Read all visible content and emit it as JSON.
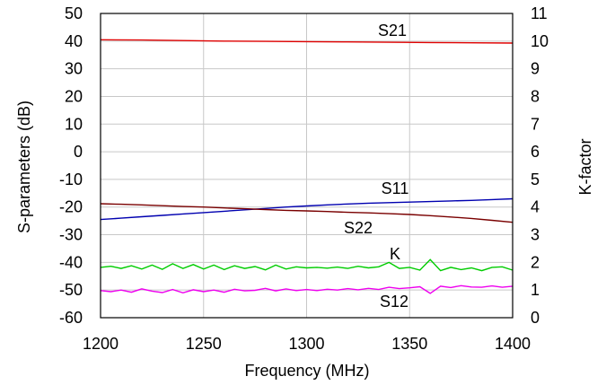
{
  "chart_data": {
    "type": "line",
    "xlabel": "Frequency (MHz)",
    "ylabel": "S-parameters (dB)",
    "y2label": "K-factor",
    "xlim": [
      1200,
      1400
    ],
    "ylim": [
      -60,
      50
    ],
    "y2lim": [
      0,
      11
    ],
    "x_ticks": [
      1200,
      1250,
      1300,
      1350,
      1400
    ],
    "y_ticks": [
      50,
      40,
      30,
      20,
      10,
      0,
      -10,
      -20,
      -30,
      -40,
      -50,
      -60
    ],
    "y2_ticks": [
      11,
      10,
      9,
      8,
      7,
      6,
      5,
      4,
      3,
      2,
      1,
      0
    ],
    "grid": true,
    "series": [
      {
        "name": "S21",
        "axis": "left",
        "color": "#e00000",
        "x": [
          1200,
          1220,
          1240,
          1260,
          1280,
          1300,
          1320,
          1340,
          1360,
          1380,
          1400
        ],
        "y": [
          40.5,
          40.4,
          40.2,
          40.0,
          39.9,
          39.8,
          39.7,
          39.6,
          39.5,
          39.4,
          39.3
        ]
      },
      {
        "name": "S11",
        "axis": "left",
        "color": "#0000b0",
        "x": [
          1200,
          1210,
          1220,
          1230,
          1240,
          1250,
          1260,
          1270,
          1280,
          1290,
          1300,
          1310,
          1320,
          1330,
          1340,
          1350,
          1360,
          1370,
          1380,
          1390,
          1400
        ],
        "y": [
          -24.5,
          -24.0,
          -23.5,
          -23.0,
          -22.5,
          -22.0,
          -21.5,
          -21.0,
          -20.5,
          -20.0,
          -19.6,
          -19.2,
          -18.9,
          -18.6,
          -18.4,
          -18.2,
          -18.0,
          -17.8,
          -17.6,
          -17.3,
          -17.0
        ]
      },
      {
        "name": "S22",
        "axis": "left",
        "color": "#7a0000",
        "x": [
          1200,
          1210,
          1220,
          1230,
          1240,
          1250,
          1260,
          1270,
          1280,
          1290,
          1300,
          1310,
          1320,
          1330,
          1340,
          1350,
          1360,
          1370,
          1380,
          1390,
          1400
        ],
        "y": [
          -18.8,
          -19.0,
          -19.2,
          -19.5,
          -19.8,
          -20.0,
          -20.3,
          -20.6,
          -20.9,
          -21.2,
          -21.4,
          -21.6,
          -21.9,
          -22.1,
          -22.4,
          -22.7,
          -23.1,
          -23.6,
          -24.1,
          -24.8,
          -25.5
        ]
      },
      {
        "name": "K",
        "axis": "right",
        "color": "#00cc00",
        "x": [
          1200,
          1205,
          1210,
          1215,
          1220,
          1225,
          1230,
          1235,
          1240,
          1245,
          1250,
          1255,
          1260,
          1265,
          1270,
          1275,
          1280,
          1285,
          1290,
          1295,
          1300,
          1305,
          1310,
          1315,
          1320,
          1325,
          1330,
          1335,
          1340,
          1345,
          1350,
          1355,
          1360,
          1365,
          1370,
          1375,
          1380,
          1385,
          1390,
          1395,
          1400
        ],
        "y": [
          1.82,
          1.86,
          1.78,
          1.88,
          1.76,
          1.9,
          1.75,
          1.95,
          1.78,
          1.92,
          1.76,
          1.9,
          1.74,
          1.88,
          1.78,
          1.85,
          1.73,
          1.9,
          1.76,
          1.84,
          1.8,
          1.82,
          1.79,
          1.83,
          1.78,
          1.86,
          1.8,
          1.84,
          2.0,
          1.78,
          1.82,
          1.72,
          2.1,
          1.7,
          1.82,
          1.74,
          1.8,
          1.7,
          1.82,
          1.84,
          1.72
        ]
      },
      {
        "name": "S12",
        "axis": "left",
        "color": "#ee00ee",
        "x": [
          1200,
          1205,
          1210,
          1215,
          1220,
          1225,
          1230,
          1235,
          1240,
          1245,
          1250,
          1255,
          1260,
          1265,
          1270,
          1275,
          1280,
          1285,
          1290,
          1295,
          1300,
          1305,
          1310,
          1315,
          1320,
          1325,
          1330,
          1335,
          1340,
          1345,
          1350,
          1355,
          1360,
          1365,
          1370,
          1375,
          1380,
          1385,
          1390,
          1395,
          1400
        ],
        "y": [
          -50.2,
          -50.6,
          -50.0,
          -50.8,
          -49.6,
          -50.4,
          -50.9,
          -49.8,
          -51.0,
          -49.9,
          -50.6,
          -50.0,
          -50.8,
          -49.7,
          -50.3,
          -50.1,
          -49.4,
          -50.3,
          -49.6,
          -50.2,
          -49.8,
          -50.2,
          -49.7,
          -50.0,
          -49.5,
          -49.9,
          -49.4,
          -49.8,
          -49.0,
          -49.5,
          -49.2,
          -48.8,
          -51.2,
          -48.6,
          -49.1,
          -48.4,
          -48.9,
          -49.0,
          -48.5,
          -49.0,
          -48.6
        ]
      }
    ],
    "annotations": [
      "S21",
      "S11",
      "S22",
      "K",
      "S12"
    ]
  }
}
